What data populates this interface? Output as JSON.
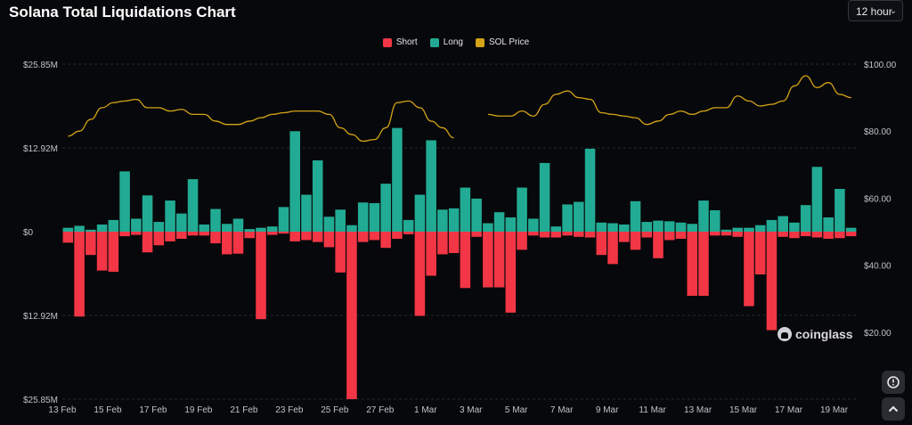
{
  "page": {
    "title": "Solana Total Liquidations Chart",
    "interval": "12 hour",
    "watermark": "coinglass",
    "icons": {
      "interval_dropdown": "chevron-down-icon",
      "screenshot_button": "camera-shutter-icon",
      "scroll_top_button": "chevron-up-icon",
      "watermark_logo": "coinglass-logo"
    }
  },
  "chart_data": {
    "type": "bar",
    "title": "Solana Total Liquidations Chart",
    "legend_position": "top-center",
    "grid": true,
    "colors": {
      "short": "#f23645",
      "long": "#22ab94",
      "price": "#d4a317"
    },
    "y_left": {
      "ticks": [
        "$25.85M",
        "$12.92M",
        "$0",
        "$12.92M",
        "$25.85M"
      ],
      "range": [
        -25.85,
        25.85
      ],
      "unit": "M USD"
    },
    "y_right": {
      "ticks": [
        "$100.00",
        "$80.00",
        "$60.00",
        "$40.00",
        "$20.00"
      ],
      "range": [
        0,
        100
      ]
    },
    "x_tick_labels": [
      "13 Feb",
      "15 Feb",
      "17 Feb",
      "19 Feb",
      "21 Feb",
      "23 Feb",
      "25 Feb",
      "27 Feb",
      "1 Mar",
      "3 Mar",
      "5 Mar",
      "7 Mar",
      "9 Mar",
      "11 Mar",
      "13 Mar",
      "15 Mar",
      "17 Mar",
      "19 Mar"
    ],
    "series": [
      {
        "name": "Long",
        "values": [
          0.6,
          0.9,
          0.3,
          1.1,
          1.8,
          9.3,
          2.0,
          5.6,
          1.5,
          4.8,
          2.8,
          8.1,
          1.1,
          3.5,
          1.2,
          2.0,
          0.4,
          0.6,
          0.8,
          3.8,
          15.5,
          5.7,
          11.0,
          2.3,
          3.4,
          1.0,
          4.5,
          4.4,
          7.4,
          16.0,
          1.8,
          5.7,
          14.1,
          3.4,
          3.6,
          6.8,
          5.1,
          1.3,
          3.0,
          2.2,
          6.8,
          2.0,
          10.6,
          0.8,
          4.2,
          4.6,
          12.8,
          1.4,
          1.3,
          1.1,
          4.7,
          1.5,
          1.7,
          1.6,
          1.4,
          1.2,
          4.8,
          3.3,
          0.3,
          0.6,
          0.6,
          1.0,
          1.8,
          2.4,
          1.4,
          4.1,
          10.0,
          2.2,
          6.6,
          0.6
        ]
      },
      {
        "name": "Short",
        "values": [
          -1.7,
          -13.1,
          -3.6,
          -6.0,
          -6.2,
          -0.7,
          -0.5,
          -3.2,
          -2.1,
          -1.5,
          -1.1,
          -0.6,
          -0.6,
          -1.8,
          -3.5,
          -3.4,
          -1.0,
          -13.5,
          -0.5,
          -0.3,
          -1.5,
          -1.3,
          -1.6,
          -2.4,
          -6.3,
          -25.85,
          -1.6,
          -1.3,
          -2.5,
          -1.1,
          -0.4,
          -13.0,
          -6.8,
          -3.5,
          -3.3,
          -8.7,
          -0.8,
          -8.6,
          -8.6,
          -12.5,
          -2.8,
          -0.6,
          -0.9,
          -0.9,
          -0.6,
          -0.8,
          -0.9,
          -3.6,
          -5.0,
          -1.6,
          -2.8,
          -0.9,
          -4.1,
          -1.3,
          -1.1,
          -9.9,
          -9.9,
          -0.6,
          -0.6,
          -0.8,
          -11.5,
          -6.6,
          -15.2,
          -0.8,
          -1.0,
          -0.7,
          -0.9,
          -1.1,
          -1.0,
          -0.7
        ]
      },
      {
        "name": "SOL Price",
        "values": [
          78.5,
          80.0,
          83.5,
          87.0,
          88.5,
          89.0,
          89.5,
          87.0,
          87.0,
          86.0,
          86.5,
          85.0,
          85.0,
          83.0,
          82.0,
          82.0,
          83.0,
          84.0,
          85.0,
          85.5,
          86.0,
          86.0,
          86.0,
          85.0,
          81.0,
          79.0,
          77.0,
          77.5,
          81.0,
          88.5,
          89.0,
          87.0,
          83.0,
          81.0,
          78.0,
          null,
          null,
          85.0,
          84.5,
          84.5,
          86.0,
          84.5,
          88.0,
          91.0,
          92.0,
          90.0,
          89.5,
          85.5,
          85.0,
          84.5,
          84.0,
          82.0,
          83.0,
          85.0,
          86.0,
          85.0,
          86.0,
          87.0,
          87.0,
          90.5,
          89.0,
          87.5,
          88.0,
          89.0,
          93.5,
          96.5,
          93.0,
          94.5,
          91.0,
          90.0
        ]
      }
    ]
  }
}
